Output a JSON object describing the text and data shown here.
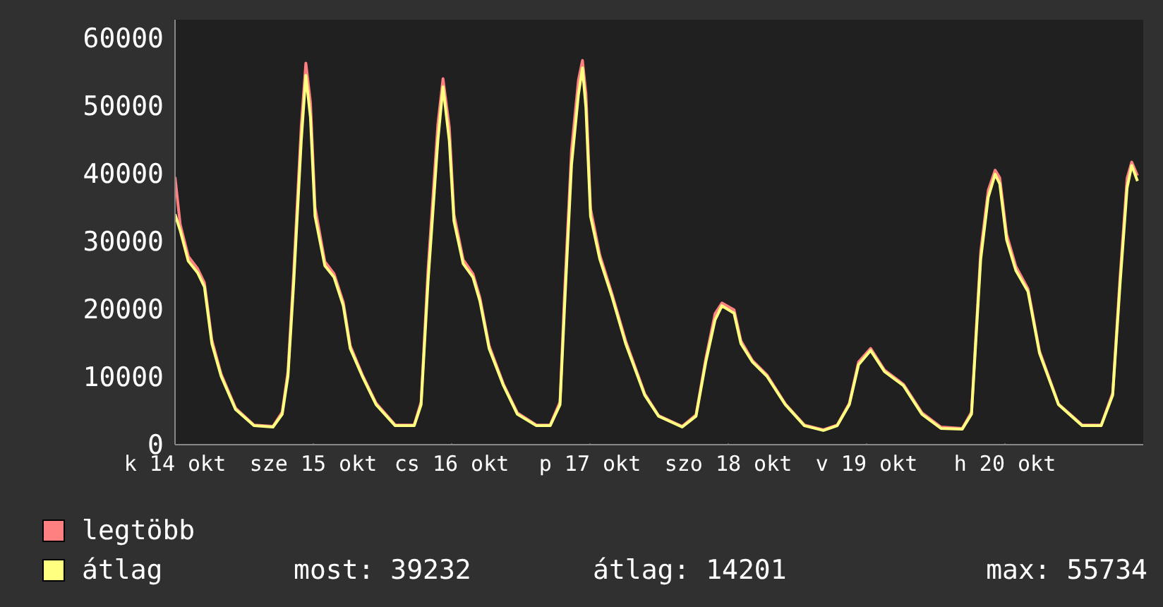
{
  "chart_data": {
    "type": "line",
    "x": [
      "--10-14T00:00",
      "--10-14T00:54",
      "--10-14T02:18",
      "--10-14T03:54",
      "--10-14T05:06",
      "--10-14T06:24",
      "--10-14T08:00",
      "--10-14T10:30",
      "--10-14T13:42",
      "--10-14T17:00",
      "--10-14T18:36",
      "--10-14T19:36",
      "--10-14T20:36",
      "--10-14T21:54",
      "--10-14T22:42",
      "--10-14T23:30",
      "--10-15T00:18",
      "--10-15T02:00",
      "--10-15T03:36",
      "--10-15T05:12",
      "--10-15T06:24",
      "--10-15T08:30",
      "--10-15T10:54",
      "--10-15T14:12",
      "--10-15T17:30",
      "--10-15T18:42",
      "--10-15T19:54",
      "--10-15T21:36",
      "--10-15T22:30",
      "--10-15T23:36",
      "--10-16T00:24",
      "--10-16T02:00",
      "--10-16T03:42",
      "--10-16T04:54",
      "--10-16T06:30",
      "--10-16T09:00",
      "--10-16T11:24",
      "--10-16T14:42",
      "--10-16T17:06",
      "--10-16T18:48",
      "--10-16T19:36",
      "--10-16T20:48",
      "--10-16T22:00",
      "--10-16T22:42",
      "--10-16T23:18",
      "--10-17T00:06",
      "--10-17T01:42",
      "--10-17T03:48",
      "--10-17T06:12",
      "--10-17T09:30",
      "--10-17T11:54",
      "--10-17T16:00",
      "--10-17T18:24",
      "--10-17T20:06",
      "--10-17T21:42",
      "--10-17T22:54",
      "--10-18T01:00",
      "--10-18T02:12",
      "--10-18T04:12",
      "--10-18T06:42",
      "--10-18T09:54",
      "--10-18T13:12",
      "--10-18T16:30",
      "--10-18T18:54",
      "--10-18T21:00",
      "--10-18T22:36",
      "--10-19T00:42",
      "--10-19T03:06",
      "--10-19T06:24",
      "--10-19T09:36",
      "--10-19T12:54",
      "--10-19T16:36",
      "--10-19T18:12",
      "--10-19T19:48",
      "--10-19T21:06",
      "--10-19T22:18",
      "--10-19T23:06",
      "--10-20T00:18",
      "--10-20T01:54",
      "--10-20T04:00",
      "--10-20T06:00",
      "--10-20T09:18",
      "--10-20T13:24",
      "--10-20T16:42",
      "--10-20T18:42",
      "--10-20T20:00",
      "--10-20T21:12",
      "--10-20T22:00",
      "--10-20T23:00"
    ],
    "series": [
      {
        "name": "legtöbb",
        "color": "#ff8080",
        "values": [
          39500,
          32500,
          27800,
          26000,
          23900,
          15400,
          10400,
          5400,
          2900,
          2700,
          4800,
          10800,
          25500,
          47000,
          56300,
          50500,
          35000,
          27000,
          25200,
          21000,
          14600,
          10300,
          6100,
          2900,
          2900,
          6300,
          25800,
          47200,
          54000,
          46800,
          34000,
          27300,
          25200,
          21700,
          14600,
          8900,
          4700,
          2900,
          2900,
          6300,
          22500,
          43500,
          53800,
          56700,
          51800,
          34800,
          28000,
          22300,
          15300,
          7500,
          4300,
          2700,
          4400,
          12700,
          19300,
          20900,
          19900,
          15300,
          12400,
          10300,
          6000,
          2900,
          2200,
          2900,
          6100,
          12200,
          14200,
          11000,
          8900,
          4700,
          2600,
          2400,
          4800,
          28500,
          37500,
          40500,
          39400,
          31000,
          26300,
          23000,
          13800,
          6000,
          2900,
          2900,
          7600,
          25000,
          39300,
          41700,
          39700
        ]
      },
      {
        "name": "átlag",
        "color": "#ffff80",
        "values": [
          34000,
          31600,
          27100,
          25400,
          23300,
          14900,
          10100,
          5200,
          2800,
          2600,
          4500,
          10100,
          24000,
          44800,
          54500,
          48300,
          33700,
          26400,
          24700,
          20500,
          14200,
          10100,
          5900,
          2800,
          2800,
          5900,
          24000,
          44800,
          52800,
          44800,
          33000,
          26700,
          24700,
          21200,
          14200,
          8700,
          4500,
          2800,
          2800,
          5900,
          20500,
          41300,
          51700,
          55600,
          49700,
          33700,
          27400,
          21900,
          14900,
          7300,
          4200,
          2600,
          4200,
          12200,
          18400,
          20500,
          19400,
          14900,
          12200,
          10100,
          5900,
          2800,
          2100,
          2800,
          5900,
          11800,
          13900,
          10800,
          8700,
          4500,
          2400,
          2300,
          4500,
          27400,
          36500,
          39900,
          38500,
          30200,
          25700,
          22600,
          13500,
          5900,
          2800,
          2800,
          7300,
          24000,
          37900,
          41200,
          38900
        ]
      }
    ],
    "xlim": [
      "--10-14",
      "--10-21"
    ],
    "xticks": [
      {
        "value": "--10-14",
        "label": "k 14 okt"
      },
      {
        "value": "--10-15",
        "label": "sze 15 okt"
      },
      {
        "value": "--10-16",
        "label": "cs 16 okt"
      },
      {
        "value": "--10-17",
        "label": "p 17 okt"
      },
      {
        "value": "--10-18",
        "label": "szo 18 okt"
      },
      {
        "value": "--10-19",
        "label": "v 19 okt"
      },
      {
        "value": "--10-20",
        "label": "h 20 okt"
      }
    ],
    "ylim": [
      0,
      62700
    ],
    "yticks": [
      0,
      10000,
      20000,
      30000,
      40000,
      50000,
      60000
    ],
    "grid": true,
    "legend": "bottom",
    "marker": "none",
    "line_style": "solid",
    "annotations": [
      "most: 39232",
      "átlag: 14201",
      "max: 55734"
    ]
  }
}
